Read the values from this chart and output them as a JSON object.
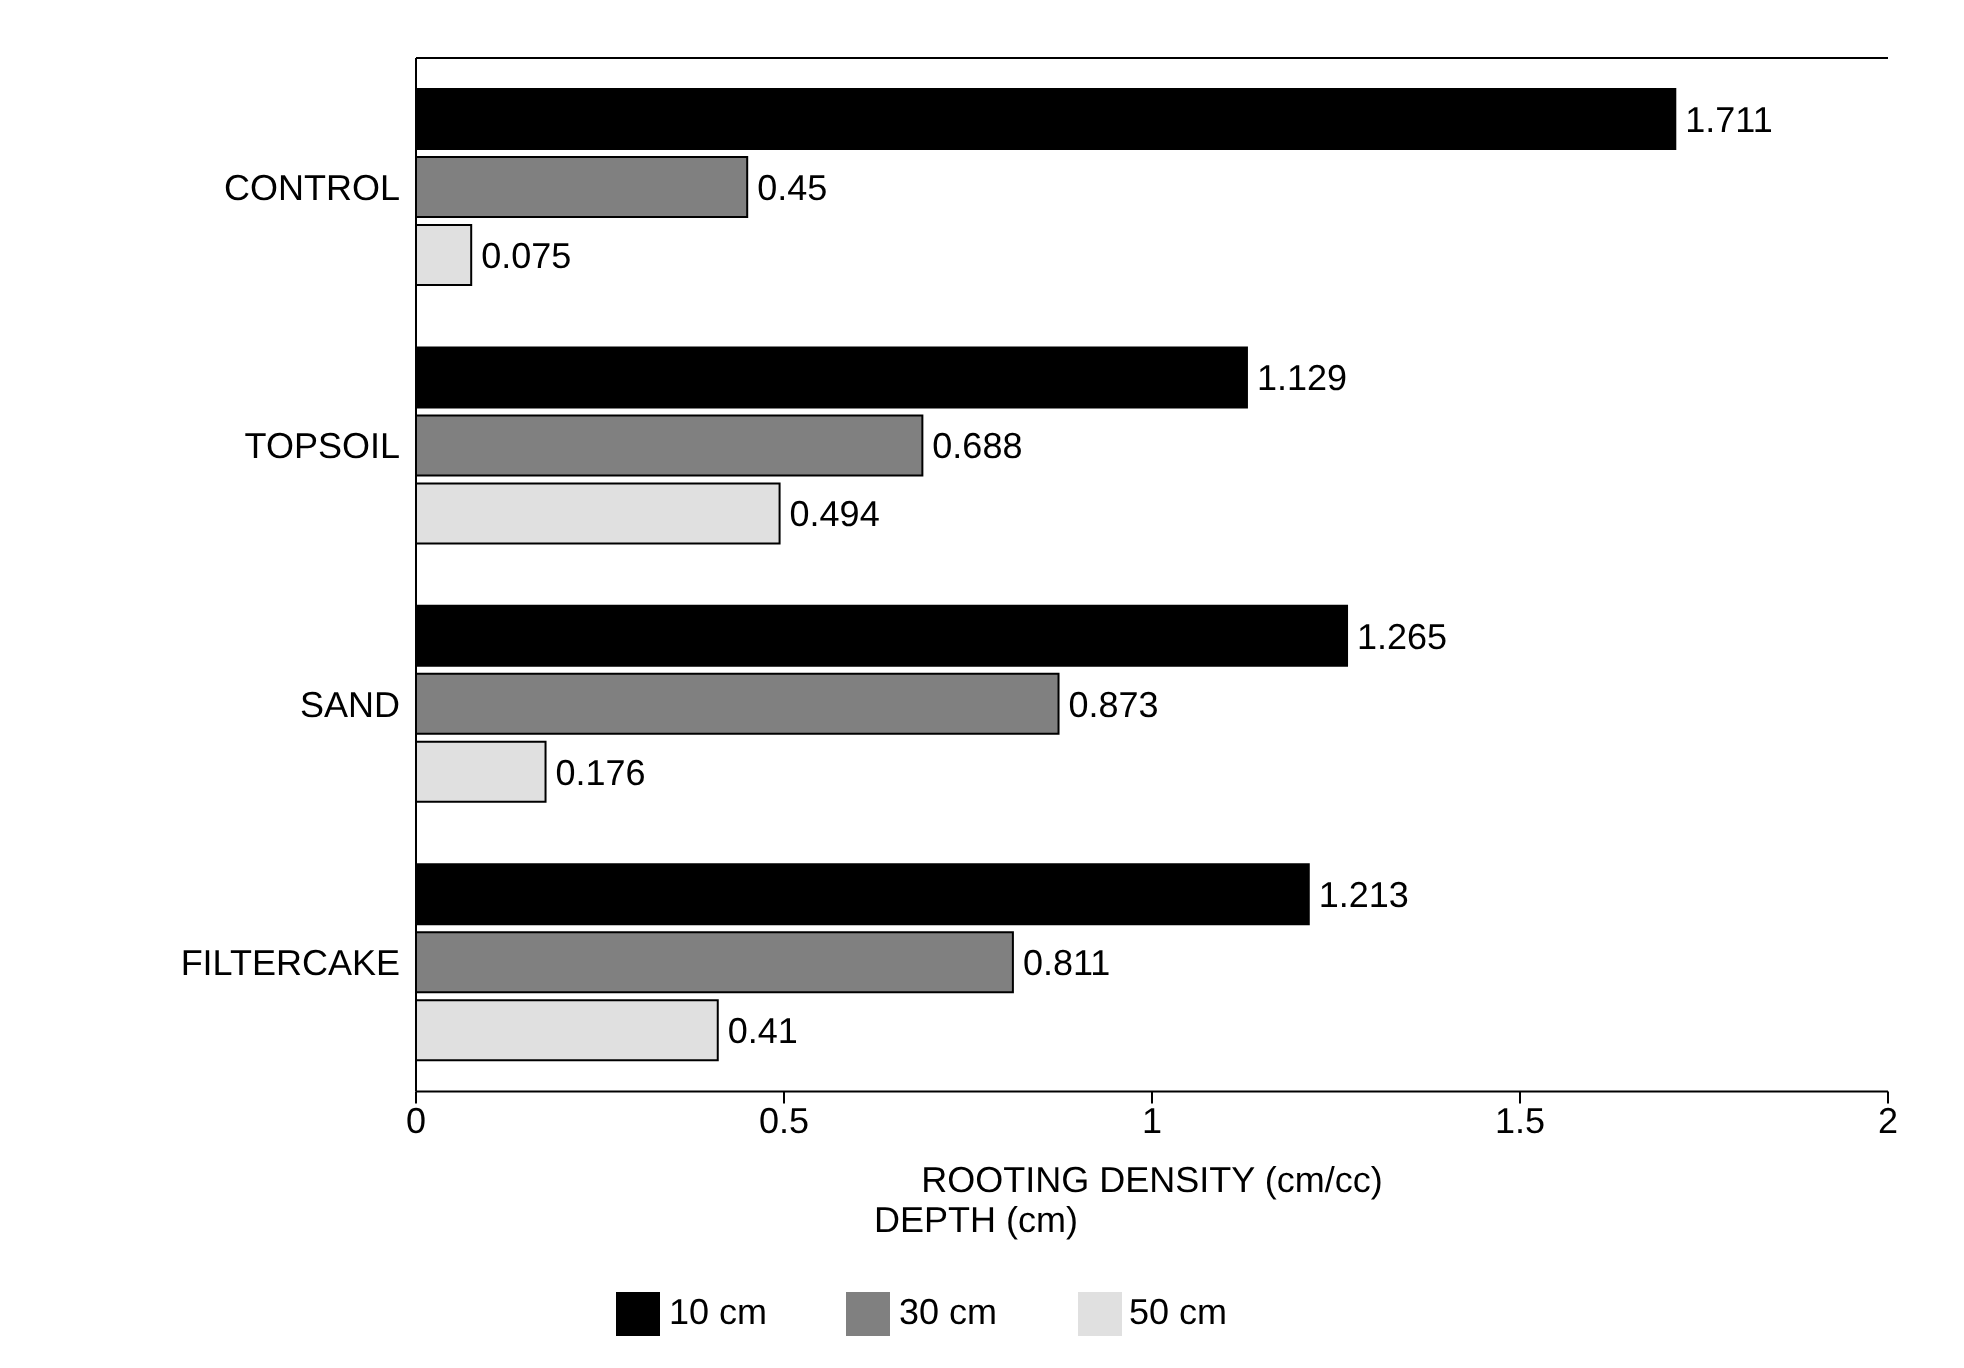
{
  "chart_data": {
    "type": "bar",
    "orientation": "horizontal",
    "categories": [
      "CONTROL",
      "TOPSOIL",
      "SAND",
      "FILTERCAKE"
    ],
    "series": [
      {
        "name": "10 cm",
        "color": "#000000",
        "values": [
          1.711,
          1.129,
          1.265,
          1.213
        ]
      },
      {
        "name": "30 cm",
        "color": "#808080",
        "values": [
          0.45,
          0.688,
          0.873,
          0.811
        ]
      },
      {
        "name": "50 cm",
        "color": "#e0e0e0",
        "values": [
          0.075,
          0.494,
          0.176,
          0.41
        ]
      }
    ],
    "xlabel": "ROOTING DENSITY (cm/cc)",
    "legend_title": "DEPTH (cm)",
    "legend": "bottom",
    "xlim": [
      0,
      2
    ],
    "xticks": [
      0,
      0.5,
      1,
      1.5,
      2
    ],
    "data_labels": true,
    "grid": false
  }
}
